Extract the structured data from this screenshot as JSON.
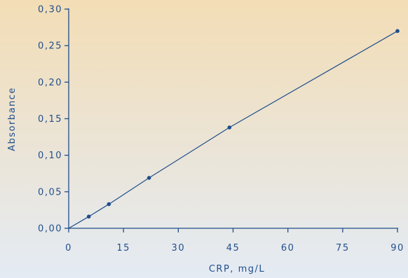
{
  "chart_data": {
    "type": "line",
    "title": "",
    "xlabel": "CRP, mg/L",
    "ylabel": "Absorbance",
    "xlim": [
      0,
      90
    ],
    "ylim": [
      0,
      0.3
    ],
    "xticks": [
      "0",
      "15",
      "30",
      "45",
      "60",
      "75",
      "90"
    ],
    "xtick_values": [
      0,
      15,
      30,
      45,
      60,
      75,
      90
    ],
    "yticks": [
      "0,00",
      "0,05",
      "0,10",
      "0,15",
      "0,20",
      "0,25",
      "0,30"
    ],
    "ytick_values": [
      0,
      0.05,
      0.1,
      0.15,
      0.2,
      0.25,
      0.3
    ],
    "grid": false,
    "series": [
      {
        "x": [
          0,
          5.5,
          11,
          22,
          44,
          90
        ],
        "y": [
          0.0,
          0.016,
          0.033,
          0.069,
          0.138,
          0.27
        ]
      }
    ],
    "colors": {
      "line": "#1f4e8c",
      "marker": "#1f4e8c",
      "axis": "#1f4e8c",
      "text": "#1f4e8c",
      "bg_top": "#f3ddb5",
      "bg_bottom": "#e4ebf4"
    }
  }
}
